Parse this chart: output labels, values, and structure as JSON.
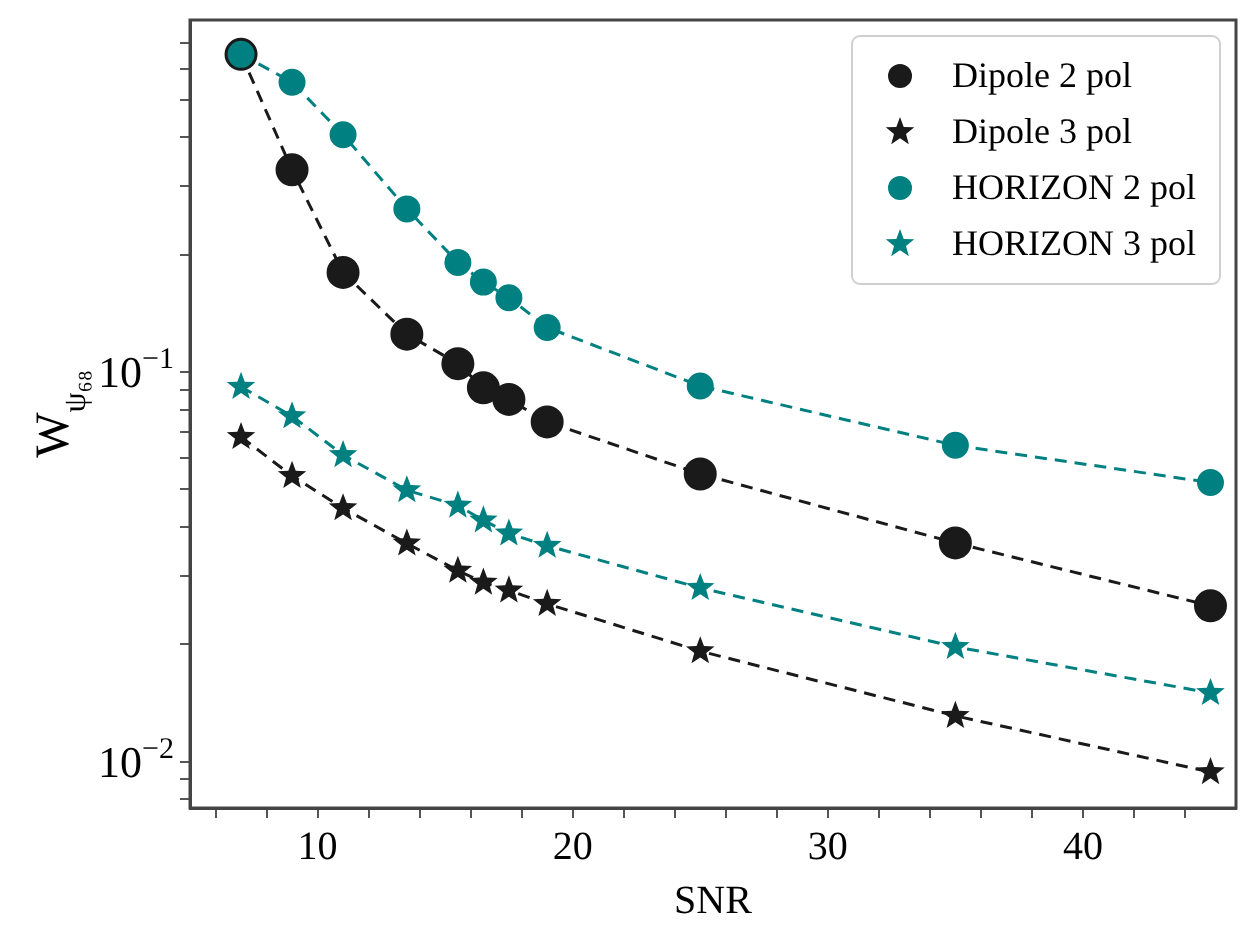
{
  "chart_data": {
    "type": "line",
    "xlabel": "SNR",
    "ylabel": "W$_{ψ₆₈}$",
    "log": "y",
    "legend": "top right",
    "line_style": "dashed",
    "grid": false,
    "xlim": [
      5,
      46
    ],
    "ylim": [
      0.0076,
      0.8
    ],
    "xticks": [
      {
        "value": 6,
        "label": null
      },
      {
        "value": 8,
        "label": null
      },
      10,
      {
        "value": 12,
        "label": null
      },
      {
        "value": 14,
        "label": null
      },
      {
        "value": 16,
        "label": null
      },
      {
        "value": 18,
        "label": null
      },
      20,
      {
        "value": 22,
        "label": null
      },
      {
        "value": 24,
        "label": null
      },
      {
        "value": 26,
        "label": null
      },
      {
        "value": 28,
        "label": null
      },
      30,
      {
        "value": 32,
        "label": null
      },
      {
        "value": 34,
        "label": null
      },
      {
        "value": 36,
        "label": null
      },
      {
        "value": 38,
        "label": null
      },
      40,
      {
        "value": 42,
        "label": null
      },
      {
        "value": 44,
        "label": null
      }
    ],
    "yticks": [
      {
        "value": 0.008,
        "label": null
      },
      {
        "value": 0.009,
        "label": null
      },
      {
        "value": 0.01,
        "label": "10$^{−2}$"
      },
      {
        "value": 0.02,
        "label": null
      },
      {
        "value": 0.03,
        "label": null
      },
      {
        "value": 0.04,
        "label": null
      },
      {
        "value": 0.05,
        "label": null
      },
      {
        "value": 0.06,
        "label": null
      },
      {
        "value": 0.07,
        "label": null
      },
      {
        "value": 0.08,
        "label": null
      },
      {
        "value": 0.09,
        "label": null
      },
      {
        "value": 0.1,
        "label": "10$^{−1}$"
      },
      {
        "value": 0.2,
        "label": null
      },
      {
        "value": 0.3,
        "label": null
      },
      {
        "value": 0.4,
        "label": null
      },
      {
        "value": 0.5,
        "label": null
      },
      {
        "value": 0.6,
        "label": null
      },
      {
        "value": 0.7,
        "label": null
      }
    ],
    "x": [
      7,
      9,
      11,
      13.5,
      15.5,
      16.5,
      17.5,
      19,
      25,
      35,
      45
    ],
    "series": [
      {
        "name": "Dipole 2 pol",
        "color": "#1a1a1a",
        "marker": "circle",
        "values": [
          0.653,
          0.33,
          0.18,
          0.125,
          0.105,
          0.091,
          0.085,
          0.0744,
          0.0547,
          0.0364,
          0.0251
        ]
      },
      {
        "name": "Dipole 3 pol",
        "color": "#1a1a1a",
        "marker": "star",
        "values": [
          0.0681,
          0.0541,
          0.0447,
          0.0363,
          0.0309,
          0.0288,
          0.0275,
          0.0254,
          0.0192,
          0.0131,
          0.0094
        ]
      },
      {
        "name": "HORIZON 2 pol",
        "color": "#008080",
        "marker": "circle",
        "values": [
          0.653,
          0.554,
          0.406,
          0.262,
          0.191,
          0.17,
          0.155,
          0.13,
          0.092,
          0.0648,
          0.052
        ]
      },
      {
        "name": "HORIZON 3 pol",
        "color": "#008080",
        "marker": "star",
        "values": [
          0.0916,
          0.077,
          0.0612,
          0.0497,
          0.0454,
          0.0416,
          0.0385,
          0.0358,
          0.0279,
          0.0197,
          0.015
        ]
      }
    ]
  }
}
